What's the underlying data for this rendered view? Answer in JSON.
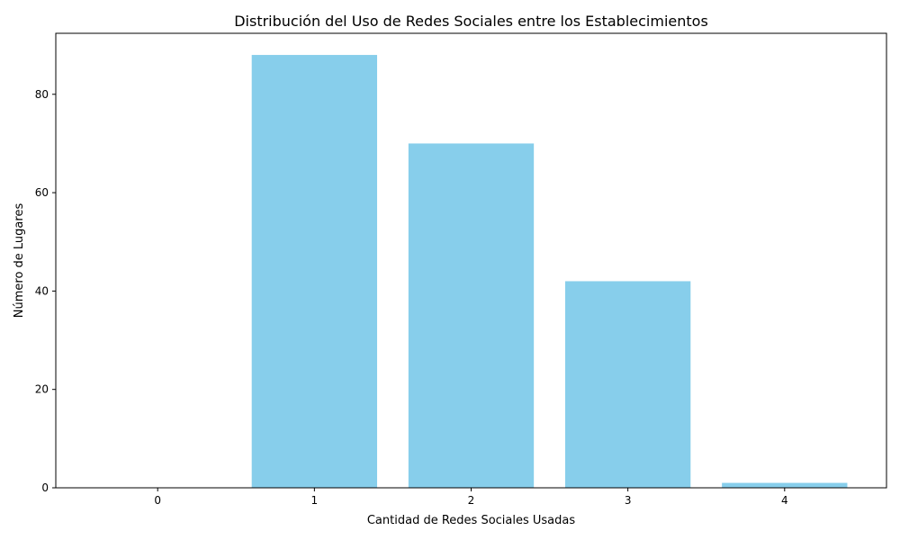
{
  "chart_data": {
    "type": "bar",
    "title": "Distribución del Uso de Redes Sociales entre los Establecimientos",
    "xlabel": "Cantidad de Redes Sociales Usadas",
    "ylabel": "Número de Lugares",
    "categories": [
      "0",
      "1",
      "2",
      "3",
      "4"
    ],
    "x": [
      0,
      1,
      2,
      3,
      4
    ],
    "values": [
      0,
      88,
      70,
      42,
      1
    ],
    "xlim": [
      -0.65,
      4.65
    ],
    "ylim": [
      0,
      92.4
    ],
    "yticks": [
      0,
      20,
      40,
      60,
      80
    ],
    "grid": false,
    "legend": "none",
    "bar_color": "#87CEEB",
    "axis_color": "#000000"
  }
}
